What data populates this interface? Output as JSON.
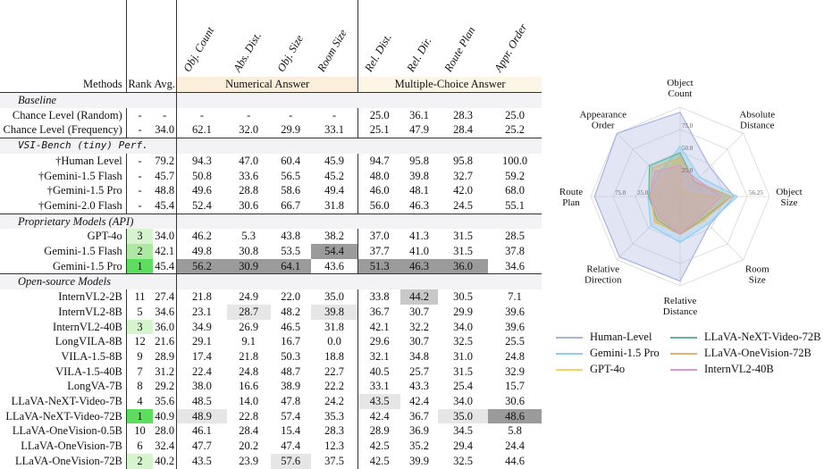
{
  "headers": {
    "methods": "Methods",
    "rank": "Rank",
    "avg": "Avg.",
    "tasks": [
      "Obj. Count",
      "Abs. Dist.",
      "Obj. Size",
      "Room Size",
      "Rel. Dist.",
      "Rel. Dir.",
      "Route Plan",
      "Appr. Order"
    ],
    "numerical": "Numerical Answer",
    "multiple_choice": "Multiple-Choice Answer"
  },
  "sections": [
    {
      "title": "Baseline",
      "mono": false,
      "rows": [
        {
          "name": "Chance Level (Random)",
          "rank": "-",
          "avg": "-",
          "vals": [
            "-",
            "-",
            "-",
            "-",
            "25.0",
            "36.1",
            "28.3",
            "25.0"
          ]
        },
        {
          "name": "Chance Level (Frequency)",
          "rank": "-",
          "avg": "34.0",
          "vals": [
            "62.1",
            "32.0",
            "29.9",
            "33.1",
            "25.1",
            "47.9",
            "28.4",
            "25.2"
          ]
        }
      ]
    },
    {
      "title": "VSI-Bench (tiny) Perf.",
      "mono": true,
      "rows": [
        {
          "name": "†Human Level",
          "rank": "-",
          "avg": "79.2",
          "vals": [
            "94.3",
            "47.0",
            "60.4",
            "45.9",
            "94.7",
            "95.8",
            "95.8",
            "100.0"
          ]
        },
        {
          "name": "†Gemini-1.5 Flash",
          "rank": "-",
          "avg": "45.7",
          "vals": [
            "50.8",
            "33.6",
            "56.5",
            "45.2",
            "48.0",
            "39.8",
            "32.7",
            "59.2"
          ]
        },
        {
          "name": "†Gemini-1.5 Pro",
          "rank": "-",
          "avg": "48.8",
          "vals": [
            "49.6",
            "28.8",
            "58.6",
            "49.4",
            "46.0",
            "48.1",
            "42.0",
            "68.0"
          ]
        },
        {
          "name": "†Gemini-2.0 Flash",
          "rank": "-",
          "avg": "45.4",
          "vals": [
            "52.4",
            "30.6",
            "66.7",
            "31.8",
            "56.0",
            "46.3",
            "24.5",
            "55.1"
          ]
        }
      ]
    },
    {
      "title": "Proprietary Models (API)",
      "mono": false,
      "rows": [
        {
          "name": "GPT-4o",
          "rank": "3",
          "avg": "34.0",
          "vals": [
            "46.2",
            "5.3",
            "43.8",
            "38.2",
            "37.0",
            "41.3",
            "31.5",
            "28.5"
          ],
          "rk": "g3"
        },
        {
          "name": "Gemini-1.5 Flash",
          "rank": "2",
          "avg": "42.1",
          "vals": [
            "49.8",
            "30.8",
            "53.5",
            "54.4",
            "37.7",
            "41.0",
            "31.5",
            "37.8"
          ],
          "rk": "g2",
          "hi": {
            "3": "k1"
          }
        },
        {
          "name": "Gemini-1.5 Pro",
          "rank": "1",
          "avg": "45.4",
          "vals": [
            "56.2",
            "30.9",
            "64.1",
            "43.6",
            "51.3",
            "46.3",
            "36.0",
            "34.6"
          ],
          "rk": "g1",
          "hi": {
            "0": "k1",
            "1": "k1",
            "2": "k1",
            "4": "k1",
            "5": "k1",
            "6": "k1"
          }
        }
      ]
    },
    {
      "title": "Open-source Models",
      "mono": false,
      "rows": [
        {
          "name": "InternVL2-2B",
          "rank": "11",
          "avg": "27.4",
          "vals": [
            "21.8",
            "24.9",
            "22.0",
            "35.0",
            "33.8",
            "44.2",
            "30.5",
            "7.1"
          ],
          "hi": {
            "5": "k2"
          }
        },
        {
          "name": "InternVL2-8B",
          "rank": "5",
          "avg": "34.6",
          "vals": [
            "23.1",
            "28.7",
            "48.2",
            "39.8",
            "36.7",
            "30.7",
            "29.9",
            "39.6"
          ],
          "hi": {
            "1": "k3",
            "3": "k3"
          }
        },
        {
          "name": "InternVL2-40B",
          "rank": "3",
          "avg": "36.0",
          "vals": [
            "34.9",
            "26.9",
            "46.5",
            "31.8",
            "42.1",
            "32.2",
            "34.0",
            "39.6"
          ],
          "rk": "g3"
        },
        {
          "name": "LongVILA-8B",
          "rank": "12",
          "avg": "21.6",
          "vals": [
            "29.1",
            "9.1",
            "16.7",
            "0.0",
            "29.6",
            "30.7",
            "32.5",
            "25.5"
          ]
        },
        {
          "name": "VILA-1.5-8B",
          "rank": "9",
          "avg": "28.9",
          "vals": [
            "17.4",
            "21.8",
            "50.3",
            "18.8",
            "32.1",
            "34.8",
            "31.0",
            "24.8"
          ]
        },
        {
          "name": "VILA-1.5-40B",
          "rank": "7",
          "avg": "31.2",
          "vals": [
            "22.4",
            "24.8",
            "48.7",
            "22.7",
            "40.5",
            "25.7",
            "31.5",
            "32.9"
          ]
        },
        {
          "name": "LongVA-7B",
          "rank": "8",
          "avg": "29.2",
          "vals": [
            "38.0",
            "16.6",
            "38.9",
            "22.2",
            "33.1",
            "43.3",
            "25.4",
            "15.7"
          ]
        },
        {
          "name": "LLaVA-NeXT-Video-7B",
          "rank": "4",
          "avg": "35.6",
          "vals": [
            "48.5",
            "14.0",
            "47.8",
            "24.2",
            "43.5",
            "42.4",
            "34.0",
            "30.6"
          ],
          "hi": {
            "4": "k3"
          }
        },
        {
          "name": "LLaVA-NeXT-Video-72B",
          "rank": "1",
          "avg": "40.9",
          "vals": [
            "48.9",
            "22.8",
            "57.4",
            "35.3",
            "42.4",
            "36.7",
            "35.0",
            "48.6"
          ],
          "rk": "g1",
          "hi": {
            "0": "k3",
            "6": "k3",
            "7": "k1"
          }
        },
        {
          "name": "LLaVA-OneVision-0.5B",
          "rank": "10",
          "avg": "28.0",
          "vals": [
            "46.1",
            "28.4",
            "15.4",
            "28.3",
            "28.9",
            "36.9",
            "34.5",
            "5.8"
          ]
        },
        {
          "name": "LLaVA-OneVision-7B",
          "rank": "6",
          "avg": "32.4",
          "vals": [
            "47.7",
            "20.2",
            "47.4",
            "12.3",
            "42.5",
            "35.2",
            "29.4",
            "24.4"
          ]
        },
        {
          "name": "LLaVA-OneVision-72B",
          "rank": "2",
          "avg": "40.2",
          "vals": [
            "43.5",
            "23.9",
            "57.6",
            "37.5",
            "42.5",
            "39.9",
            "32.5",
            "44.6"
          ],
          "rk": "g3",
          "hi": {
            "2": "k3"
          }
        }
      ]
    }
  ],
  "radar": {
    "axes": [
      "Object\nCount",
      "Absolute\nDistance",
      "Object\nSize",
      "Room\nSize",
      "Relative\nDistance",
      "Relative\nDirection",
      "Route\nPlan",
      "Appearance\nOrder"
    ],
    "tick_labels": [
      "25.0",
      "50.0",
      "56.25",
      "75.0"
    ],
    "series": [
      {
        "name": "Human-Level",
        "color": "#a8b4e0",
        "values": [
          94.3,
          47.0,
          60.4,
          45.9,
          94.7,
          95.8,
          95.8,
          100.0
        ]
      },
      {
        "name": "Gemini-1.5 Pro",
        "color": "#8fcff0",
        "values": [
          56.2,
          30.9,
          64.1,
          43.6,
          51.3,
          46.3,
          36.0,
          34.6
        ]
      },
      {
        "name": "GPT-4o",
        "color": "#f0d860",
        "values": [
          46.2,
          5.3,
          43.8,
          38.2,
          37.0,
          41.3,
          31.5,
          28.5
        ]
      },
      {
        "name": "LLaVA-NeXT-Video-72B",
        "color": "#5fb59a",
        "values": [
          48.9,
          22.8,
          57.4,
          35.3,
          42.4,
          36.7,
          35.0,
          48.6
        ]
      },
      {
        "name": "LLaVA-OneVision-72B",
        "color": "#e8b070",
        "values": [
          43.5,
          23.9,
          57.6,
          37.5,
          42.5,
          39.9,
          32.5,
          44.6
        ]
      },
      {
        "name": "InternVL2-40B",
        "color": "#d89ad0",
        "values": [
          34.9,
          26.9,
          46.5,
          31.8,
          42.1,
          32.2,
          34.0,
          39.6
        ]
      }
    ]
  }
}
